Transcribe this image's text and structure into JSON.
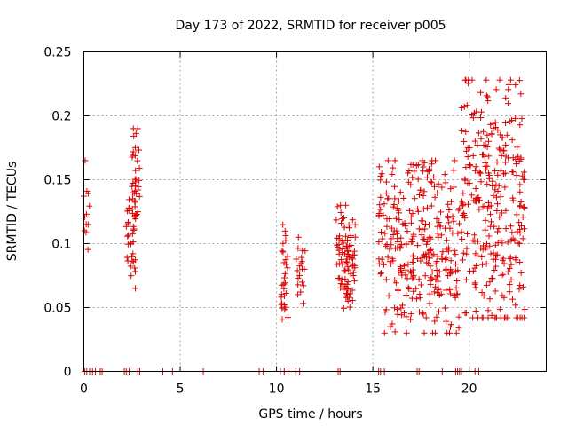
{
  "chart_data": {
    "type": "scatter",
    "title": "Day 173 of 2022, SRMTID for receiver p005",
    "xlabel": "GPS time / hours",
    "ylabel": "SRMTID / TECUs",
    "xlim": [
      0,
      24
    ],
    "ylim": [
      0,
      0.25
    ],
    "xticks": [
      0,
      5,
      10,
      15,
      20
    ],
    "yticks": [
      0,
      0.05,
      0.1,
      0.15,
      0.2,
      0.25
    ],
    "ytick_labels": [
      "0",
      "0.05",
      "0.1",
      "0.15",
      "0.2",
      "0.25"
    ],
    "grid": true,
    "marker": "plus",
    "series_color": "#dd0000",
    "series": [
      {
        "name": "SRMTID",
        "clusters": [
          {
            "x_range": [
              0.0,
              0.3
            ],
            "y_range": [
              0.08,
              0.165
            ],
            "n": 12
          },
          {
            "x_range": [
              2.2,
              2.7
            ],
            "y_range": [
              0.065,
              0.145
            ],
            "n": 40
          },
          {
            "x_range": [
              2.5,
              2.9
            ],
            "y_range": [
              0.11,
              0.19
            ],
            "n": 30
          },
          {
            "x_range": [
              10.2,
              10.6
            ],
            "y_range": [
              0.035,
              0.115
            ],
            "n": 30
          },
          {
            "x_range": [
              11.0,
              11.5
            ],
            "y_range": [
              0.05,
              0.105
            ],
            "n": 20
          },
          {
            "x_range": [
              13.1,
              14.1
            ],
            "y_range": [
              0.045,
              0.13
            ],
            "n": 90
          },
          {
            "x_range": [
              15.3,
              19.5
            ],
            "y_range": [
              0.03,
              0.165
            ],
            "n": 320
          },
          {
            "x_range": [
              19.6,
              22.9
            ],
            "y_range": [
              0.042,
              0.228
            ],
            "n": 300
          }
        ],
        "zero_points_x": [
          0.05,
          0.15,
          0.3,
          0.45,
          0.6,
          0.85,
          0.95,
          2.1,
          2.2,
          2.35,
          2.8,
          2.9,
          4.1,
          4.6,
          6.2,
          9.1,
          9.3,
          10.2,
          10.4,
          10.6,
          11.0,
          11.2,
          13.2,
          13.3,
          15.3,
          15.4,
          15.6,
          17.3,
          17.4,
          18.6,
          19.3,
          19.4,
          19.5,
          19.6,
          20.3,
          20.5
        ]
      }
    ]
  }
}
